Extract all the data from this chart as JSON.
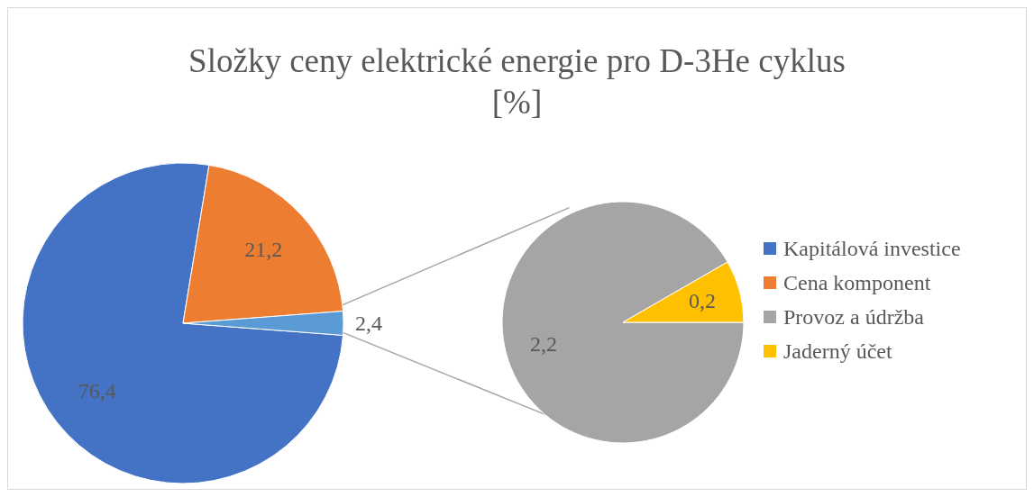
{
  "chart_data": [
    {
      "type": "pie",
      "title": "Složky ceny elektrické energie pro D-3He cyklus\n[%]",
      "categories": [
        "Kapitálová investice",
        "Cena komponent",
        null
      ],
      "values": [
        76.4,
        21.2,
        2.4
      ],
      "value_labels": [
        "76,4",
        "21,2",
        "2,4"
      ],
      "colors": [
        "#4472c4",
        "#ed7d31",
        "#5b9bd5"
      ],
      "legend": "right"
    },
    {
      "type": "pie",
      "categories": [
        "Provoz a údržba",
        "Jaderný účet"
      ],
      "values": [
        2.2,
        0.2
      ],
      "value_labels": [
        "2,2",
        "0,2"
      ],
      "colors": [
        "#a5a5a5",
        "#ffc000"
      ],
      "legend": "right"
    }
  ]
}
